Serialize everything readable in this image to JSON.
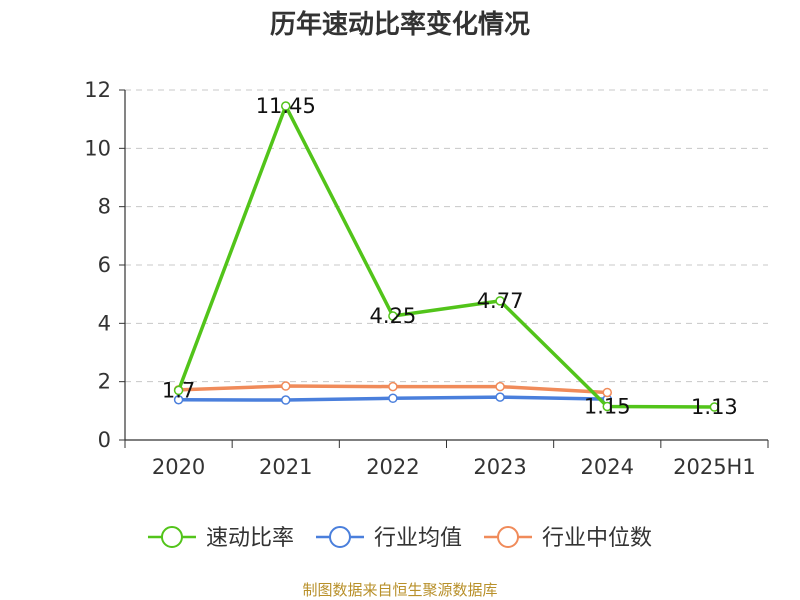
{
  "chart_data": {
    "type": "line",
    "title": "历年速动比率变化情况",
    "categories": [
      "2020",
      "2021",
      "2022",
      "2023",
      "2024",
      "2025H1"
    ],
    "ylim": [
      0,
      12
    ],
    "yticks": [
      0,
      2,
      4,
      6,
      8,
      10,
      12
    ],
    "grid": true,
    "legend_position": "bottom",
    "series": [
      {
        "name": "速动比率",
        "color": "#52c41a",
        "values": [
          1.7,
          11.45,
          4.25,
          4.77,
          1.15,
          1.13
        ],
        "labels": [
          "1.7",
          "11.45",
          "4.25",
          "4.77",
          "1.15",
          "1.13"
        ]
      },
      {
        "name": "行业均值",
        "color": "#4a7fdc",
        "values": [
          1.38,
          1.37,
          1.43,
          1.47,
          1.4,
          null
        ]
      },
      {
        "name": "行业中位数",
        "color": "#f08b5a",
        "values": [
          1.72,
          1.85,
          1.83,
          1.83,
          1.63,
          null
        ]
      }
    ]
  },
  "source": "制图数据来自恒生聚源数据库"
}
